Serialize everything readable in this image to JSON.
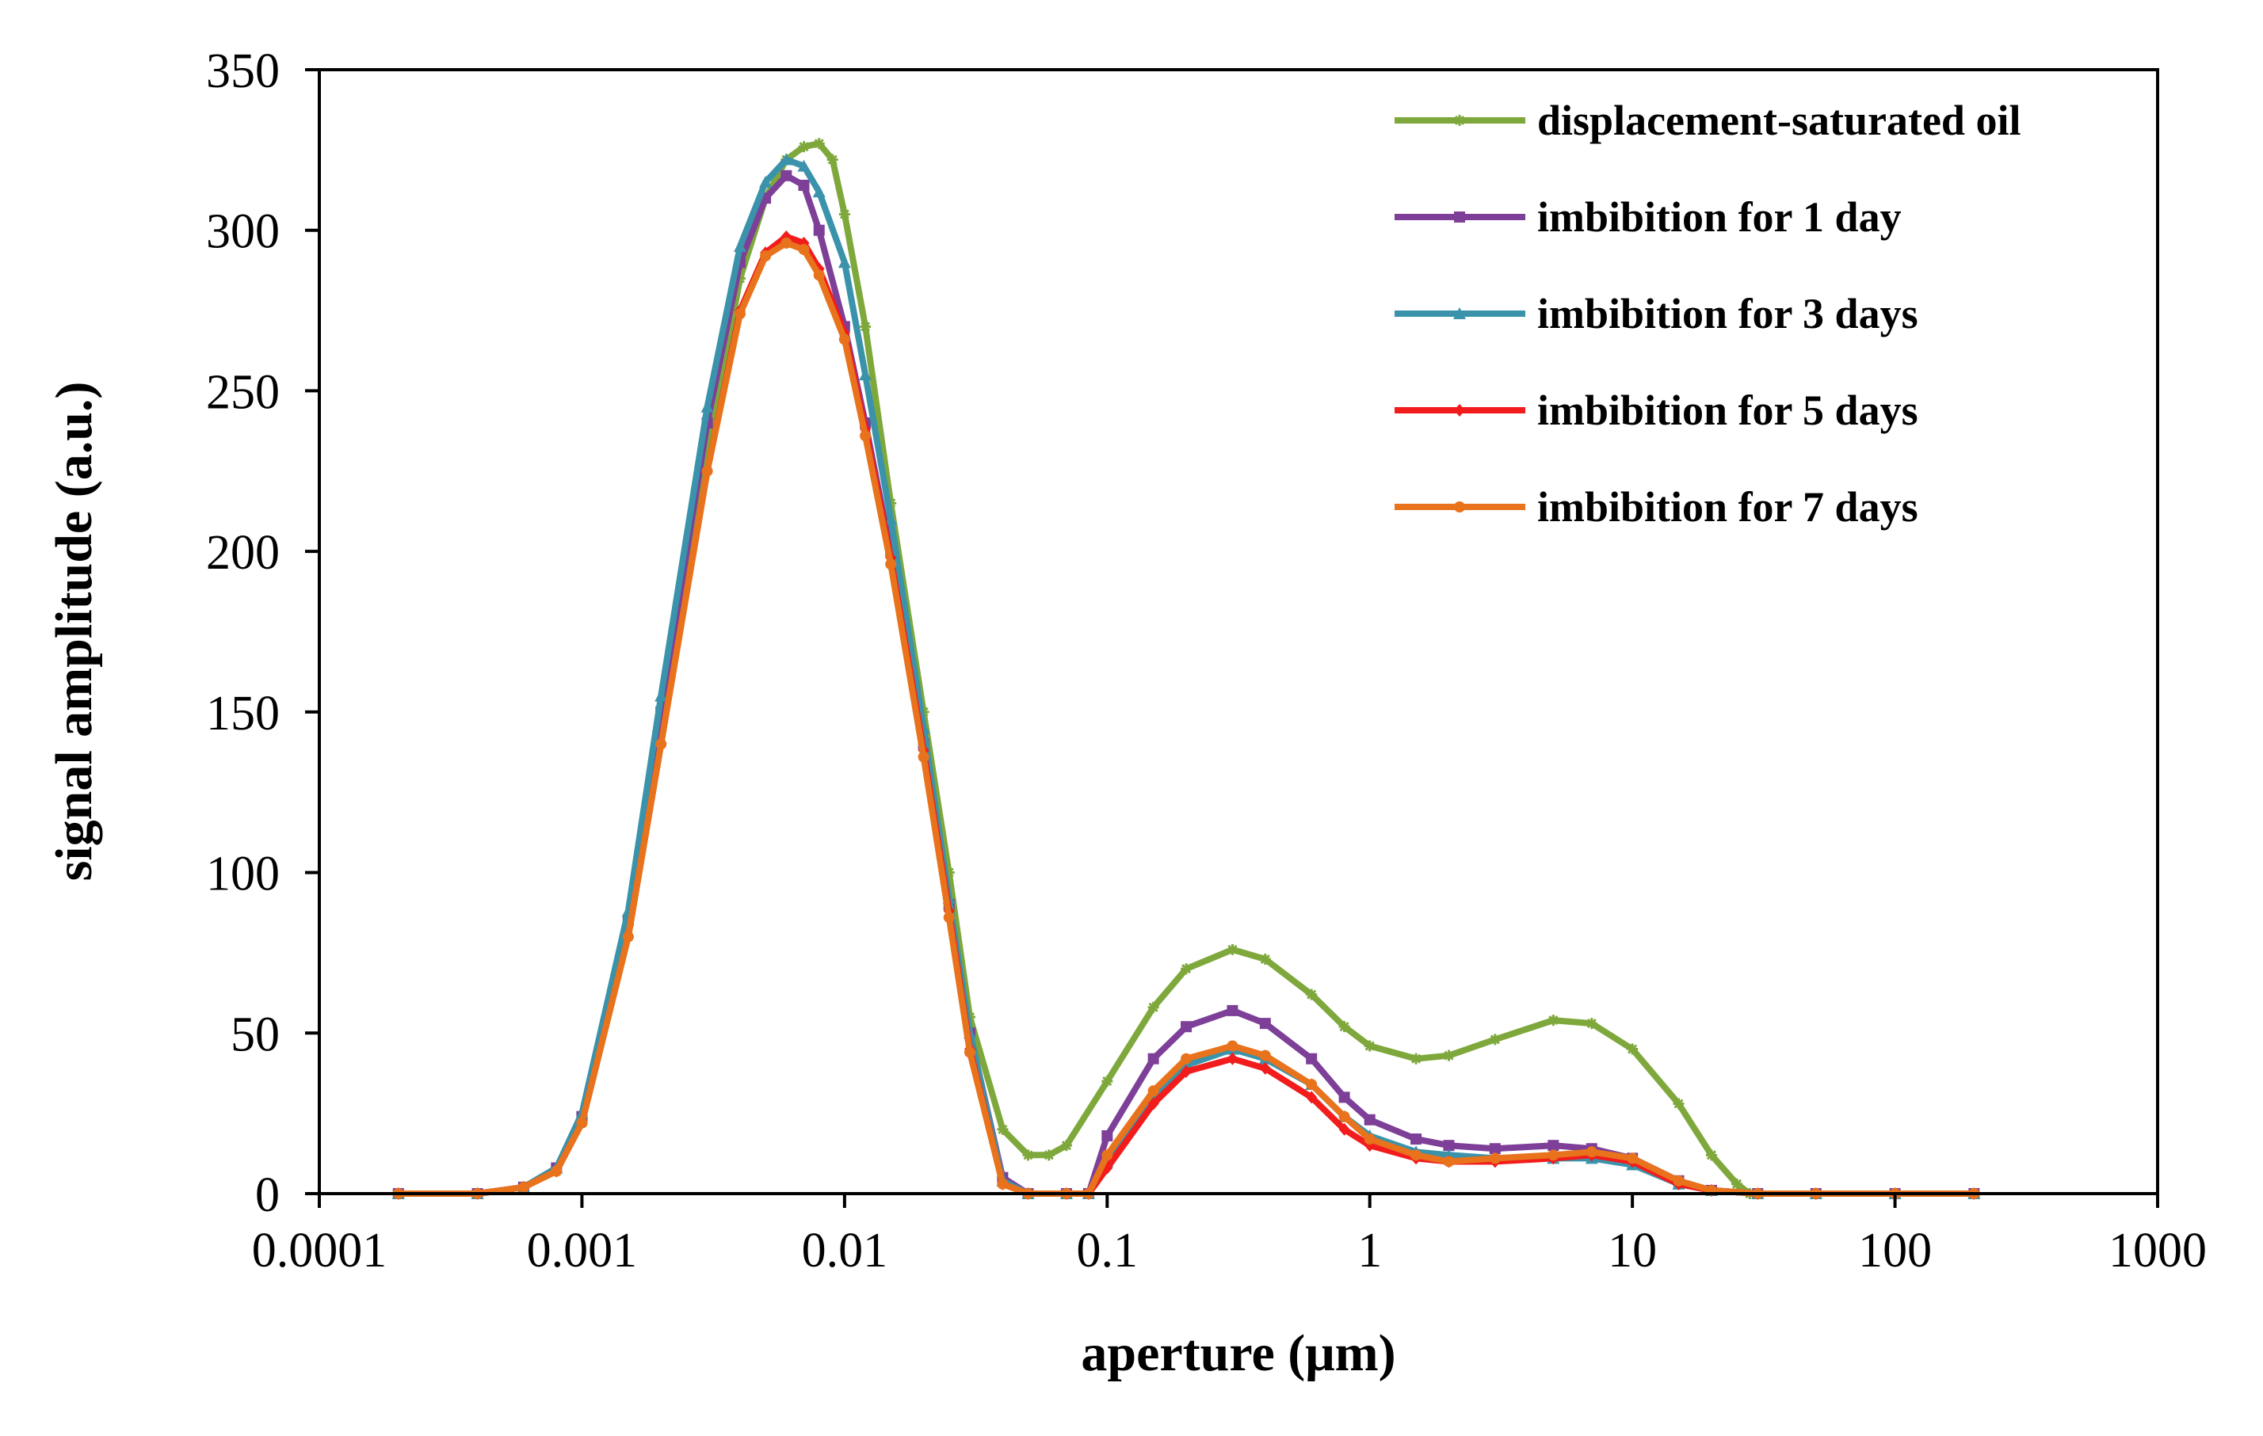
{
  "chart_data": {
    "type": "line",
    "title": "",
    "xlabel": "aperture (μm)",
    "ylabel": "signal amplitude  (a.u.)",
    "xscale": "log",
    "xlim": [
      0.0001,
      1000
    ],
    "ylim": [
      0,
      350
    ],
    "grid": false,
    "legend_position": "top-right",
    "xticks": [
      {
        "value": 0.0001,
        "label": "0.0001"
      },
      {
        "value": 0.001,
        "label": "0.001"
      },
      {
        "value": 0.01,
        "label": "0.01"
      },
      {
        "value": 0.1,
        "label": "0.1"
      },
      {
        "value": 1,
        "label": "1"
      },
      {
        "value": 10,
        "label": "10"
      },
      {
        "value": 100,
        "label": "100"
      },
      {
        "value": 1000,
        "label": "1000"
      }
    ],
    "yticks": [
      {
        "value": 0,
        "label": "0"
      },
      {
        "value": 50,
        "label": "50"
      },
      {
        "value": 100,
        "label": "100"
      },
      {
        "value": 150,
        "label": "150"
      },
      {
        "value": 200,
        "label": "200"
      },
      {
        "value": 250,
        "label": "250"
      },
      {
        "value": 300,
        "label": "300"
      },
      {
        "value": 350,
        "label": "350"
      }
    ],
    "series": [
      {
        "name": "displacement-saturated oil",
        "color": "#7ea83c",
        "marker": "star",
        "points": [
          [
            0.0002,
            0
          ],
          [
            0.0004,
            0
          ],
          [
            0.0006,
            2
          ],
          [
            0.0008,
            8
          ],
          [
            0.001,
            22
          ],
          [
            0.0015,
            80
          ],
          [
            0.002,
            140
          ],
          [
            0.003,
            230
          ],
          [
            0.004,
            285
          ],
          [
            0.005,
            310
          ],
          [
            0.006,
            322
          ],
          [
            0.007,
            326
          ],
          [
            0.008,
            327
          ],
          [
            0.009,
            322
          ],
          [
            0.01,
            305
          ],
          [
            0.012,
            270
          ],
          [
            0.015,
            215
          ],
          [
            0.02,
            150
          ],
          [
            0.025,
            100
          ],
          [
            0.03,
            55
          ],
          [
            0.04,
            20
          ],
          [
            0.05,
            12
          ],
          [
            0.06,
            12
          ],
          [
            0.07,
            15
          ],
          [
            0.1,
            35
          ],
          [
            0.15,
            58
          ],
          [
            0.2,
            70
          ],
          [
            0.3,
            76
          ],
          [
            0.4,
            73
          ],
          [
            0.6,
            62
          ],
          [
            0.8,
            52
          ],
          [
            1,
            46
          ],
          [
            1.5,
            42
          ],
          [
            2,
            43
          ],
          [
            3,
            48
          ],
          [
            5,
            54
          ],
          [
            7,
            53
          ],
          [
            10,
            45
          ],
          [
            15,
            28
          ],
          [
            20,
            12
          ],
          [
            25,
            3
          ],
          [
            28,
            0
          ],
          [
            50,
            0
          ],
          [
            100,
            0
          ],
          [
            200,
            0
          ]
        ]
      },
      {
        "name": "imbibition for 1 day",
        "color": "#7d3f98",
        "marker": "square",
        "points": [
          [
            0.0002,
            0
          ],
          [
            0.0004,
            0
          ],
          [
            0.0006,
            2
          ],
          [
            0.0008,
            8
          ],
          [
            0.001,
            24
          ],
          [
            0.0015,
            85
          ],
          [
            0.002,
            150
          ],
          [
            0.003,
            240
          ],
          [
            0.004,
            290
          ],
          [
            0.005,
            310
          ],
          [
            0.006,
            317
          ],
          [
            0.007,
            314
          ],
          [
            0.008,
            300
          ],
          [
            0.01,
            270
          ],
          [
            0.012,
            240
          ],
          [
            0.015,
            200
          ],
          [
            0.02,
            140
          ],
          [
            0.025,
            90
          ],
          [
            0.03,
            50
          ],
          [
            0.04,
            5
          ],
          [
            0.05,
            0
          ],
          [
            0.07,
            0
          ],
          [
            0.085,
            0
          ],
          [
            0.1,
            18
          ],
          [
            0.15,
            42
          ],
          [
            0.2,
            52
          ],
          [
            0.3,
            57
          ],
          [
            0.4,
            53
          ],
          [
            0.6,
            42
          ],
          [
            0.8,
            30
          ],
          [
            1,
            23
          ],
          [
            1.5,
            17
          ],
          [
            2,
            15
          ],
          [
            3,
            14
          ],
          [
            5,
            15
          ],
          [
            7,
            14
          ],
          [
            10,
            11
          ],
          [
            15,
            4
          ],
          [
            20,
            1
          ],
          [
            30,
            0
          ],
          [
            50,
            0
          ],
          [
            100,
            0
          ],
          [
            200,
            0
          ]
        ]
      },
      {
        "name": "imbibition for 3 days",
        "color": "#3a93ab",
        "marker": "triangle",
        "points": [
          [
            0.0002,
            0
          ],
          [
            0.0004,
            0
          ],
          [
            0.0006,
            2
          ],
          [
            0.0008,
            8
          ],
          [
            0.001,
            25
          ],
          [
            0.0015,
            88
          ],
          [
            0.002,
            155
          ],
          [
            0.003,
            245
          ],
          [
            0.004,
            295
          ],
          [
            0.005,
            315
          ],
          [
            0.006,
            322
          ],
          [
            0.007,
            320
          ],
          [
            0.008,
            312
          ],
          [
            0.01,
            290
          ],
          [
            0.012,
            255
          ],
          [
            0.015,
            210
          ],
          [
            0.02,
            145
          ],
          [
            0.025,
            92
          ],
          [
            0.03,
            50
          ],
          [
            0.04,
            4
          ],
          [
            0.05,
            0
          ],
          [
            0.07,
            0
          ],
          [
            0.085,
            0
          ],
          [
            0.1,
            10
          ],
          [
            0.15,
            30
          ],
          [
            0.2,
            40
          ],
          [
            0.3,
            45
          ],
          [
            0.4,
            42
          ],
          [
            0.6,
            34
          ],
          [
            0.8,
            24
          ],
          [
            1,
            18
          ],
          [
            1.5,
            13
          ],
          [
            2,
            12
          ],
          [
            3,
            11
          ],
          [
            5,
            11
          ],
          [
            7,
            11
          ],
          [
            10,
            9
          ],
          [
            15,
            3
          ],
          [
            20,
            1
          ],
          [
            30,
            0
          ],
          [
            50,
            0
          ],
          [
            100,
            0
          ],
          [
            200,
            0
          ]
        ]
      },
      {
        "name": "imbibition for 5 days",
        "color": "#f21c1c",
        "marker": "diamond",
        "points": [
          [
            0.0002,
            0
          ],
          [
            0.0004,
            0
          ],
          [
            0.0006,
            2
          ],
          [
            0.0008,
            7
          ],
          [
            0.001,
            22
          ],
          [
            0.0015,
            80
          ],
          [
            0.002,
            140
          ],
          [
            0.003,
            225
          ],
          [
            0.004,
            275
          ],
          [
            0.005,
            293
          ],
          [
            0.006,
            298
          ],
          [
            0.007,
            296
          ],
          [
            0.008,
            288
          ],
          [
            0.01,
            268
          ],
          [
            0.012,
            238
          ],
          [
            0.015,
            198
          ],
          [
            0.02,
            138
          ],
          [
            0.025,
            88
          ],
          [
            0.03,
            45
          ],
          [
            0.04,
            3
          ],
          [
            0.05,
            0
          ],
          [
            0.07,
            0
          ],
          [
            0.085,
            0
          ],
          [
            0.1,
            8
          ],
          [
            0.15,
            28
          ],
          [
            0.2,
            38
          ],
          [
            0.3,
            42
          ],
          [
            0.4,
            39
          ],
          [
            0.6,
            30
          ],
          [
            0.8,
            20
          ],
          [
            1,
            15
          ],
          [
            1.5,
            11
          ],
          [
            2,
            10
          ],
          [
            3,
            10
          ],
          [
            5,
            11
          ],
          [
            7,
            12
          ],
          [
            10,
            10
          ],
          [
            15,
            3
          ],
          [
            20,
            1
          ],
          [
            30,
            0
          ],
          [
            50,
            0
          ],
          [
            100,
            0
          ],
          [
            200,
            0
          ]
        ]
      },
      {
        "name": "imbibition for 7 days",
        "color": "#e8731c",
        "marker": "circle",
        "points": [
          [
            0.0002,
            0
          ],
          [
            0.0004,
            0
          ],
          [
            0.0006,
            2
          ],
          [
            0.0008,
            7
          ],
          [
            0.001,
            22
          ],
          [
            0.0015,
            80
          ],
          [
            0.002,
            140
          ],
          [
            0.003,
            225
          ],
          [
            0.004,
            274
          ],
          [
            0.005,
            292
          ],
          [
            0.006,
            296
          ],
          [
            0.007,
            294
          ],
          [
            0.008,
            286
          ],
          [
            0.01,
            266
          ],
          [
            0.012,
            236
          ],
          [
            0.015,
            196
          ],
          [
            0.02,
            136
          ],
          [
            0.025,
            86
          ],
          [
            0.03,
            44
          ],
          [
            0.04,
            3
          ],
          [
            0.05,
            0
          ],
          [
            0.07,
            0
          ],
          [
            0.085,
            0
          ],
          [
            0.1,
            12
          ],
          [
            0.15,
            32
          ],
          [
            0.2,
            42
          ],
          [
            0.3,
            46
          ],
          [
            0.4,
            43
          ],
          [
            0.6,
            34
          ],
          [
            0.8,
            24
          ],
          [
            1,
            17
          ],
          [
            1.5,
            12
          ],
          [
            2,
            10
          ],
          [
            3,
            11
          ],
          [
            5,
            12
          ],
          [
            7,
            13
          ],
          [
            10,
            11
          ],
          [
            15,
            4
          ],
          [
            20,
            1
          ],
          [
            30,
            0
          ],
          [
            50,
            0
          ],
          [
            100,
            0
          ],
          [
            200,
            0
          ]
        ]
      }
    ]
  }
}
